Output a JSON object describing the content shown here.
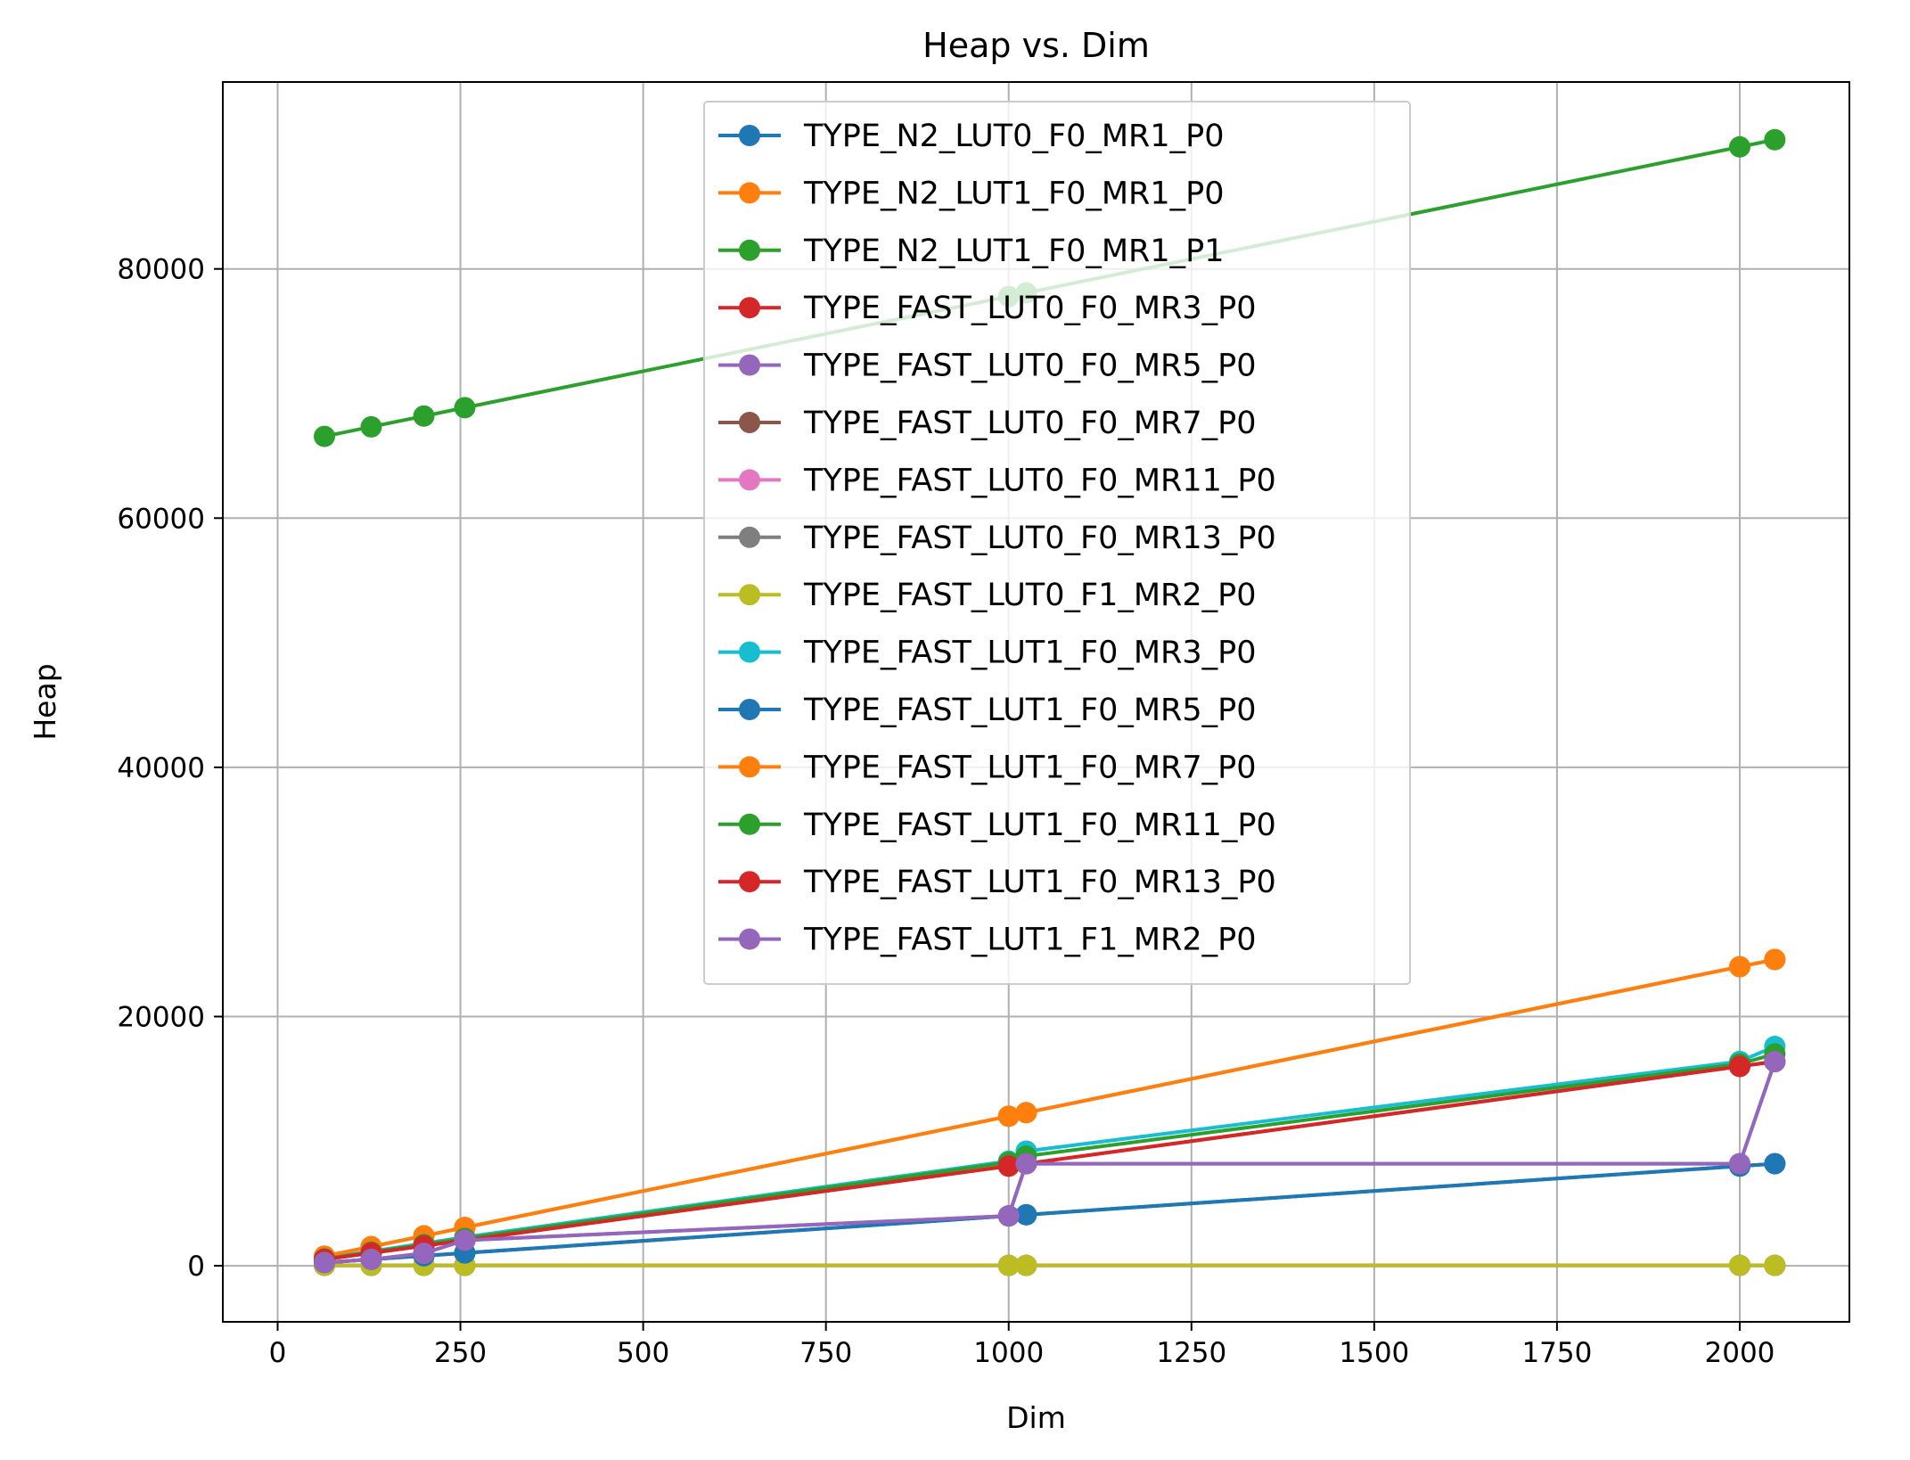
{
  "chart_data": {
    "type": "line",
    "title": "Heap vs. Dim",
    "xlabel": "Dim",
    "ylabel": "Heap",
    "xlim": [
      -75,
      2150
    ],
    "ylim": [
      -4500,
      95000
    ],
    "xticks": [
      0,
      250,
      500,
      750,
      1000,
      1250,
      1500,
      1750,
      2000
    ],
    "yticks": [
      0,
      20000,
      40000,
      60000,
      80000
    ],
    "grid": true,
    "legend_position": "top-center",
    "x": [
      64,
      128,
      200,
      256,
      1000,
      1024,
      2000,
      2048
    ],
    "series": [
      {
        "name": "TYPE_N2_LUT0_F0_MR1_P0",
        "color": "#1f77b4",
        "values": [
          256,
          512,
          800,
          1024,
          4000,
          4096,
          8000,
          8192
        ]
      },
      {
        "name": "TYPE_N2_LUT1_F0_MR1_P0",
        "color": "#ff7f0e",
        "values": [
          768,
          1536,
          2400,
          3072,
          12000,
          12288,
          24000,
          24576
        ]
      },
      {
        "name": "TYPE_N2_LUT1_F0_MR1_P1",
        "color": "#2ca02c",
        "values": [
          66560,
          67328,
          68192,
          68864,
          77792,
          78080,
          89792,
          90368
        ]
      },
      {
        "name": "TYPE_FAST_LUT0_F0_MR3_P0",
        "color": "#d62728",
        "values": [
          512,
          1024,
          1600,
          2048,
          8000,
          8192,
          16000,
          16384
        ]
      },
      {
        "name": "TYPE_FAST_LUT0_F0_MR5_P0",
        "color": "#9467bd",
        "values": [
          256,
          512,
          1000,
          2048,
          4000,
          8192,
          8192,
          16384
        ]
      },
      {
        "name": "TYPE_FAST_LUT0_F0_MR7_P0",
        "color": "#8c564b",
        "values": [
          30,
          30,
          30,
          30,
          30,
          30,
          30,
          30
        ]
      },
      {
        "name": "TYPE_FAST_LUT0_F0_MR11_P0",
        "color": "#e377c2",
        "values": [
          30,
          30,
          30,
          30,
          30,
          30,
          30,
          30
        ]
      },
      {
        "name": "TYPE_FAST_LUT0_F0_MR13_P0",
        "color": "#7f7f7f",
        "values": [
          30,
          30,
          30,
          30,
          30,
          30,
          30,
          30
        ]
      },
      {
        "name": "TYPE_FAST_LUT0_F1_MR2_P0",
        "color": "#bcbd22",
        "values": [
          30,
          30,
          30,
          30,
          30,
          30,
          30,
          30
        ]
      },
      {
        "name": "TYPE_FAST_LUT1_F0_MR3_P0",
        "color": "#17becf",
        "values": [
          600,
          1150,
          1800,
          2300,
          8400,
          9200,
          16400,
          17600
        ]
      },
      {
        "name": "TYPE_FAST_LUT1_F0_MR5_P0",
        "color": "#1f77b4",
        "values": [
          256,
          512,
          800,
          1024,
          4000,
          4096,
          8000,
          8192
        ]
      },
      {
        "name": "TYPE_FAST_LUT1_F0_MR7_P0",
        "color": "#ff7f0e",
        "values": [
          768,
          1536,
          2400,
          3072,
          12000,
          12288,
          24000,
          24576
        ]
      },
      {
        "name": "TYPE_FAST_LUT1_F0_MR11_P0",
        "color": "#2ca02c",
        "values": [
          550,
          1100,
          1700,
          2200,
          8300,
          8800,
          16200,
          17000
        ]
      },
      {
        "name": "TYPE_FAST_LUT1_F0_MR13_P0",
        "color": "#d62728",
        "values": [
          512,
          1024,
          1600,
          2048,
          8000,
          8192,
          16000,
          16384
        ]
      },
      {
        "name": "TYPE_FAST_LUT1_F1_MR2_P0",
        "color": "#9467bd",
        "values": [
          256,
          512,
          1000,
          2048,
          4000,
          8192,
          8192,
          16384
        ]
      }
    ]
  }
}
